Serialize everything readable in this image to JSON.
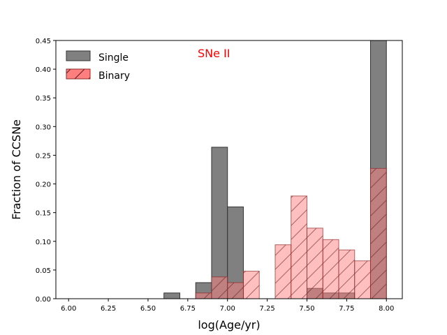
{
  "chart_data": {
    "type": "bar",
    "subtype": "overlaid-histogram",
    "title": "",
    "annotation": {
      "text": "SNe II",
      "color": "#ff0000"
    },
    "xlabel": "log(Age/yr)",
    "ylabel": "Fraction of CCSNe",
    "xlim": [
      5.92,
      8.1
    ],
    "ylim": [
      0,
      0.45
    ],
    "xticks": [
      6.0,
      6.25,
      6.5,
      6.75,
      7.0,
      7.25,
      7.5,
      7.75,
      8.0
    ],
    "xtick_labels": [
      "6.00",
      "6.25",
      "6.50",
      "6.75",
      "7.00",
      "7.25",
      "7.50",
      "7.75",
      "8.00"
    ],
    "yticks": [
      0.0,
      0.05,
      0.1,
      0.15,
      0.2,
      0.25,
      0.3,
      0.35,
      0.4,
      0.45
    ],
    "ytick_labels": [
      "0.00",
      "0.05",
      "0.10",
      "0.15",
      "0.20",
      "0.25",
      "0.30",
      "0.35",
      "0.40",
      "0.45"
    ],
    "bin_edges": [
      6.6,
      6.7,
      6.8,
      6.9,
      7.0,
      7.1,
      7.2,
      7.3,
      7.4,
      7.5,
      7.6,
      7.7,
      7.8,
      7.9,
      8.0
    ],
    "legend_position": "upper-left",
    "series": [
      {
        "name": "Single",
        "color": "#808080",
        "edge": "#333333",
        "hatch": false,
        "values": [
          0.01,
          0.0,
          0.028,
          0.264,
          0.16,
          0.0,
          0.0,
          0.0,
          0.0,
          0.018,
          0.01,
          0.01,
          0.0,
          0.45
        ]
      },
      {
        "name": "Binary",
        "color": "#ff7f7f",
        "edge": "#8b2a2a",
        "hatch": true,
        "values": [
          0.0,
          0.0,
          0.01,
          0.038,
          0.028,
          0.048,
          0.0,
          0.094,
          0.179,
          0.123,
          0.103,
          0.085,
          0.066,
          0.227
        ]
      }
    ]
  }
}
